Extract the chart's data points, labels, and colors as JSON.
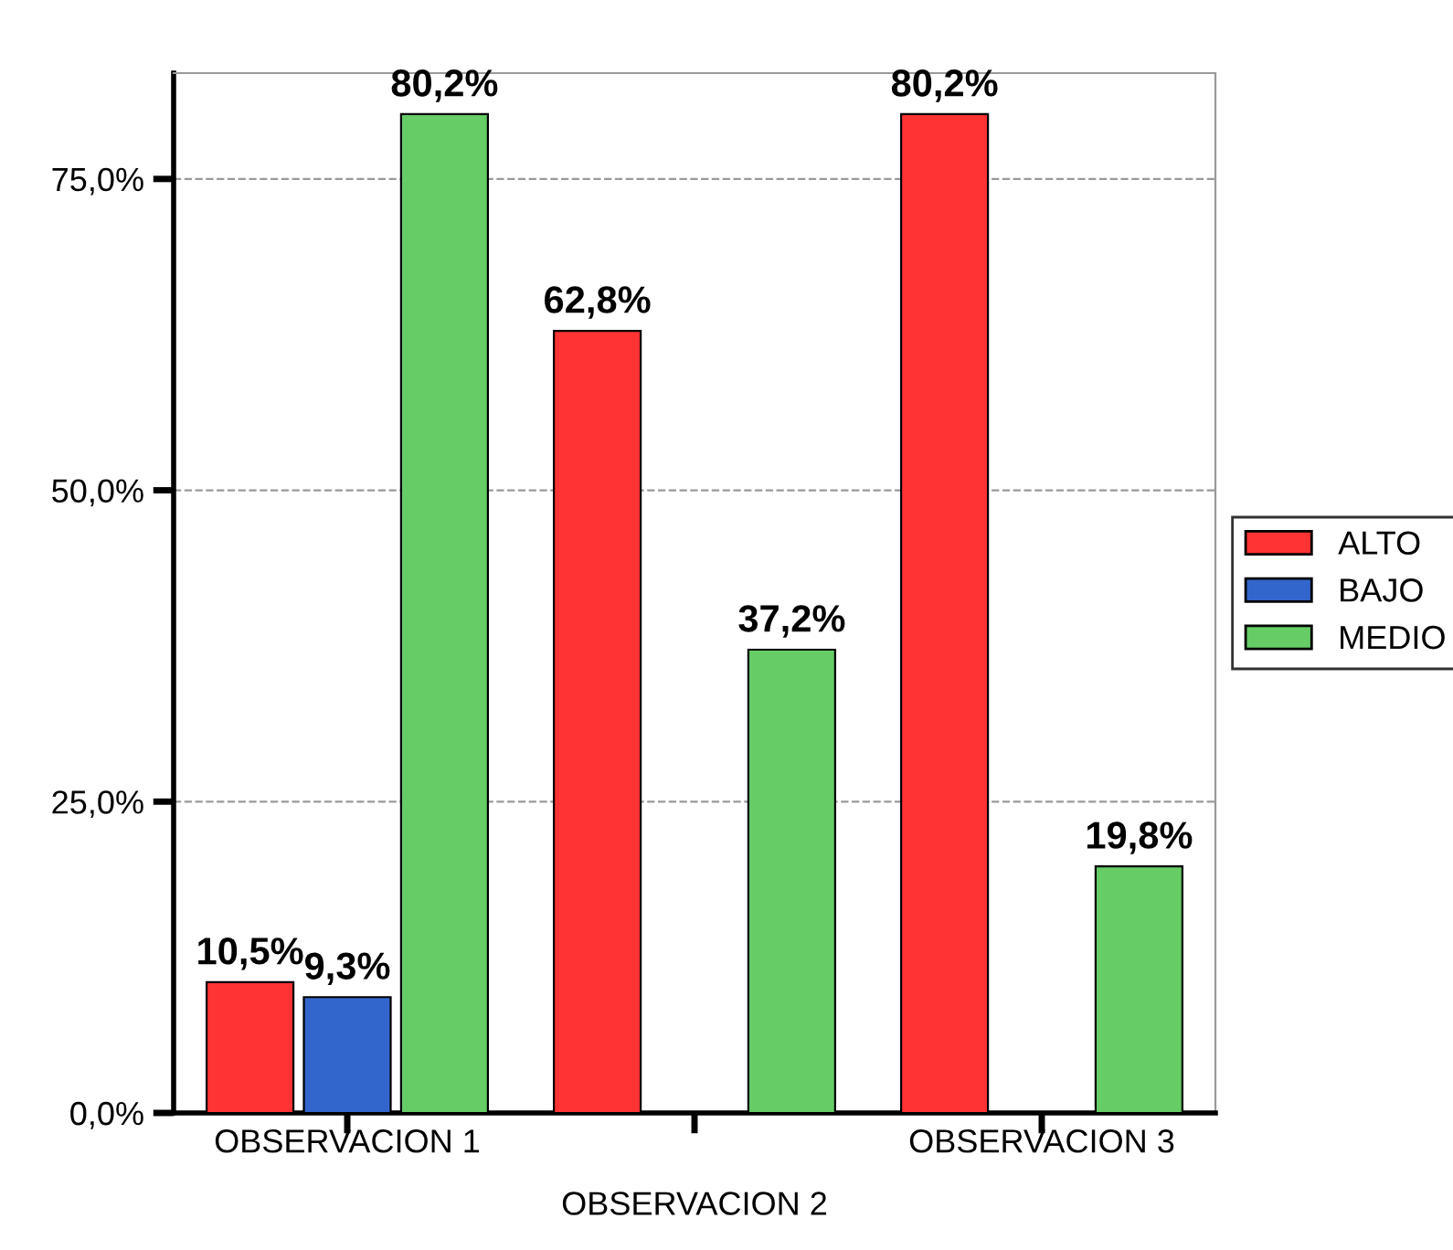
{
  "chart_data": {
    "type": "bar",
    "categories": [
      "OBSERVACION 1",
      "OBSERVACION 2",
      "OBSERVACION 3"
    ],
    "series": [
      {
        "name": "ALTO",
        "color": "#ff3333",
        "values": [
          10.5,
          62.8,
          80.2
        ],
        "value_labels": [
          "10,5%",
          "62,8%",
          "80,2%"
        ]
      },
      {
        "name": "BAJO",
        "color": "#3366cc",
        "values": [
          9.3,
          null,
          null
        ],
        "value_labels": [
          "9,3%",
          null,
          null
        ]
      },
      {
        "name": "MEDIO",
        "color": "#66cc66",
        "values": [
          80.2,
          37.2,
          19.8
        ],
        "value_labels": [
          "80,2%",
          "37,2%",
          "19,8%"
        ]
      }
    ],
    "ylim": [
      0,
      83.5
    ],
    "yticks": [
      {
        "value": 0,
        "label": "0,0%"
      },
      {
        "value": 25,
        "label": "25,0%"
      },
      {
        "value": 50,
        "label": "50,0%"
      },
      {
        "value": 75,
        "label": "75,0%"
      }
    ],
    "grid": "y",
    "legend": "right"
  }
}
